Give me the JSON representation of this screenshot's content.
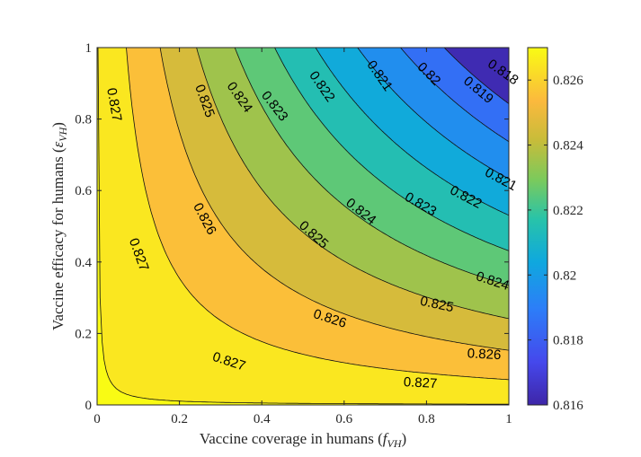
{
  "chart_data": {
    "type": "contour",
    "xlabel": "Vaccine coverage in humans (",
    "xlabel_symbol": "f",
    "xlabel_sub": "VH",
    "xlabel_close": ")",
    "ylabel": "Vaccine efficacy for humans (",
    "ylabel_symbol": "ε",
    "ylabel_sub": "VH",
    "ylabel_close": ")",
    "xlim": [
      0,
      1
    ],
    "ylim": [
      0,
      1
    ],
    "xticks": [
      "0",
      "0.2",
      "0.4",
      "0.6",
      "0.8",
      "1"
    ],
    "yticks": [
      "0",
      "0.2",
      "0.4",
      "0.6",
      "0.8",
      "1"
    ],
    "colorbar_range": [
      0.816,
      0.827
    ],
    "colorbar_ticks": [
      "0.816",
      "0.818",
      "0.82",
      "0.822",
      "0.824",
      "0.826"
    ],
    "levels": [
      0.827,
      0.826,
      0.825,
      0.824,
      0.823,
      0.822,
      0.821,
      0.82,
      0.819,
      0.818
    ],
    "contour_labels": [
      {
        "text": "0.827",
        "x": 0.04,
        "y": 0.84,
        "angle": 80
      },
      {
        "text": "0.827",
        "x": 0.1,
        "y": 0.42,
        "angle": 70
      },
      {
        "text": "0.827",
        "x": 0.32,
        "y": 0.12,
        "angle": 18
      },
      {
        "text": "0.827",
        "x": 0.785,
        "y": 0.06,
        "angle": 3
      },
      {
        "text": "0.826",
        "x": 0.26,
        "y": 0.52,
        "angle": 62
      },
      {
        "text": "0.826",
        "x": 0.565,
        "y": 0.24,
        "angle": 18
      },
      {
        "text": "0.826",
        "x": 0.94,
        "y": 0.14,
        "angle": 3
      },
      {
        "text": "0.825",
        "x": 0.26,
        "y": 0.85,
        "angle": 70
      },
      {
        "text": "0.825",
        "x": 0.525,
        "y": 0.475,
        "angle": 42
      },
      {
        "text": "0.825",
        "x": 0.825,
        "y": 0.28,
        "angle": 12
      },
      {
        "text": "0.824",
        "x": 0.345,
        "y": 0.86,
        "angle": 55
      },
      {
        "text": "0.824",
        "x": 0.64,
        "y": 0.54,
        "angle": 38
      },
      {
        "text": "0.824",
        "x": 0.96,
        "y": 0.345,
        "angle": 18
      },
      {
        "text": "0.823",
        "x": 0.43,
        "y": 0.835,
        "angle": 52
      },
      {
        "text": "0.823",
        "x": 0.785,
        "y": 0.56,
        "angle": 30
      },
      {
        "text": "0.822",
        "x": 0.545,
        "y": 0.89,
        "angle": 55
      },
      {
        "text": "0.822",
        "x": 0.895,
        "y": 0.58,
        "angle": 28
      },
      {
        "text": "0.821",
        "x": 0.685,
        "y": 0.92,
        "angle": 55
      },
      {
        "text": "0.821",
        "x": 0.98,
        "y": 0.63,
        "angle": 28
      },
      {
        "text": "0.82",
        "x": 0.805,
        "y": 0.925,
        "angle": 45
      },
      {
        "text": "0.819",
        "x": 0.925,
        "y": 0.88,
        "angle": 40
      },
      {
        "text": "0.818",
        "x": 1.06,
        "y": 0.93,
        "angle": 35
      }
    ]
  }
}
